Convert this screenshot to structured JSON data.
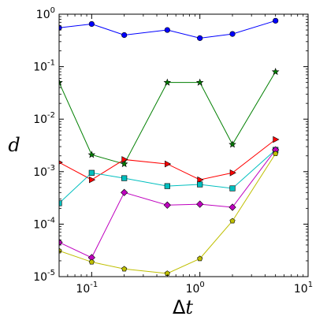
{
  "chart_data": {
    "type": "line",
    "title": "",
    "xlabel_base": "Δ",
    "xlabel_var": "t",
    "ylabel": "d",
    "xscale": "log",
    "yscale": "log",
    "xlim": [
      0.05,
      10
    ],
    "ylim": [
      1e-05,
      1
    ],
    "grid": false,
    "legend": "none",
    "x_ticks": [
      {
        "value": 0.1,
        "base": "10",
        "exp": "-1"
      },
      {
        "value": 1,
        "base": "10",
        "exp": "0"
      },
      {
        "value": 10,
        "base": "10",
        "exp": "1"
      }
    ],
    "y_ticks": [
      {
        "value": 1,
        "base": "10",
        "exp": "0"
      },
      {
        "value": 0.1,
        "base": "10",
        "exp": "-1"
      },
      {
        "value": 0.01,
        "base": "10",
        "exp": "-2"
      },
      {
        "value": 0.001,
        "base": "10",
        "exp": "-3"
      },
      {
        "value": 0.0001,
        "base": "10",
        "exp": "-4"
      },
      {
        "value": 1e-05,
        "base": "10",
        "exp": "-5"
      }
    ],
    "x": [
      0.05,
      0.1,
      0.2,
      0.5,
      1,
      2,
      5
    ],
    "series": [
      {
        "color": "#0000ff",
        "marker": "circle",
        "values": [
          0.55,
          0.65,
          0.4,
          0.5,
          0.35,
          0.42,
          0.75
        ]
      },
      {
        "color": "#007f00",
        "marker": "star",
        "values": [
          0.05,
          0.0021,
          0.0014,
          0.05,
          0.05,
          0.0033,
          0.08
        ]
      },
      {
        "color": "#ff0000",
        "marker": "triangle-right",
        "values": [
          0.0015,
          0.0007,
          0.0017,
          0.0014,
          0.0007,
          0.00095,
          0.0041
        ]
      },
      {
        "color": "#00bfbf",
        "marker": "square",
        "values": [
          0.00025,
          0.00095,
          0.00075,
          0.00053,
          0.00057,
          0.00048,
          0.0026
        ]
      },
      {
        "color": "#bf00bf",
        "marker": "diamond",
        "values": [
          4.5e-05,
          2.3e-05,
          0.0004,
          0.00023,
          0.00024,
          0.00021,
          0.0026
        ]
      },
      {
        "color": "#bfbf00",
        "marker": "pentagon",
        "values": [
          3.1e-05,
          1.9e-05,
          1.4e-05,
          1.15e-05,
          2.2e-05,
          0.000115,
          0.0022
        ]
      }
    ]
  }
}
